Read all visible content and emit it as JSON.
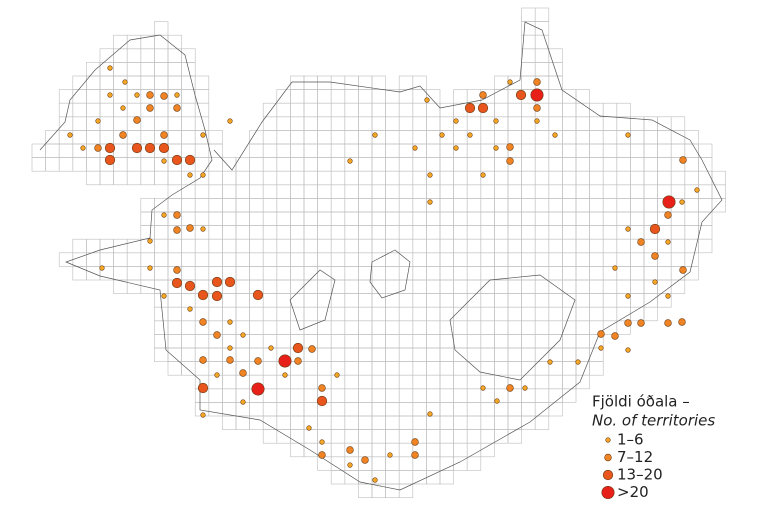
{
  "legend": {
    "title": "Fjöldi óðala –",
    "subtitle": "No. of territories",
    "items": [
      "1–6",
      "7–12",
      "13–20",
      ">20"
    ]
  }
}
